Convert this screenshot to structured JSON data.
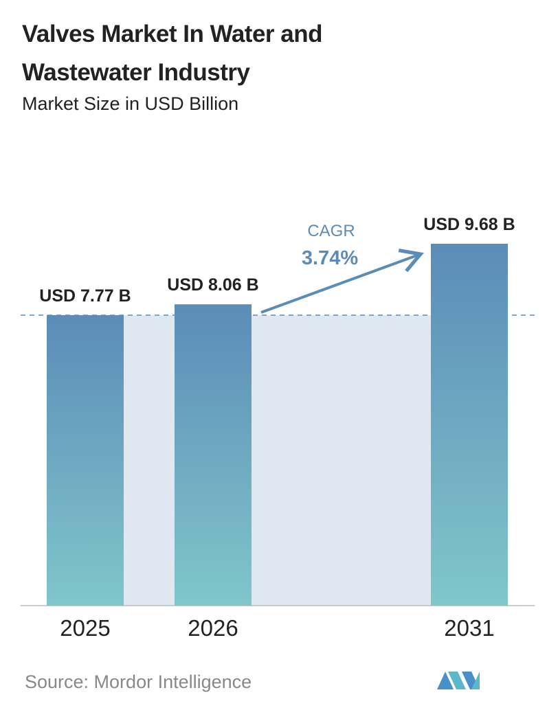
{
  "chart_data": {
    "type": "bar",
    "title": "Valves Market In Water and Wastewater Industry",
    "subtitle": "Market Size in USD Billion",
    "categories": [
      "2025",
      "2026",
      "2031"
    ],
    "values": [
      7.77,
      8.06,
      9.68
    ],
    "value_labels": [
      "USD 7.77 B",
      "USD 8.06 B",
      "USD 9.68 B"
    ],
    "gradient": [
      "#5b8cb8",
      "#80c6ca"
    ],
    "annotation": {
      "label": "CAGR",
      "value": "3.74%"
    },
    "source": "Source: Mordor Intelligence"
  }
}
